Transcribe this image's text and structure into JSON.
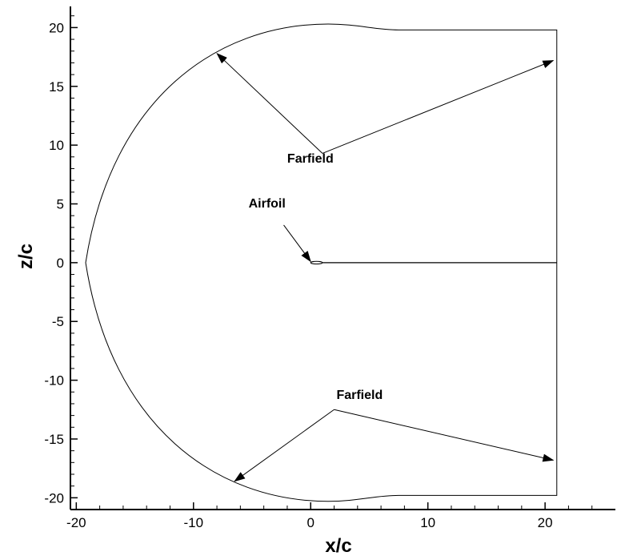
{
  "chart_data": {
    "type": "diagram",
    "xlabel": "x/c",
    "ylabel": "z/c",
    "xlim": [
      -20.5,
      26
    ],
    "ylim": [
      -21,
      21.8
    ],
    "x_ticks": [
      -20,
      -10,
      0,
      10,
      20
    ],
    "x_tick_labels": [
      "-20",
      "-10",
      "0",
      "10",
      "20"
    ],
    "y_ticks": [
      20,
      15,
      10,
      5,
      0,
      -5,
      -10,
      -15,
      -20
    ],
    "y_tick_labels": [
      "20",
      "15",
      "10",
      "5",
      "0",
      "-5",
      "-10",
      "-15",
      "-20"
    ],
    "domain": {
      "outflow_x": 21.0,
      "top_z": 19.8,
      "bottom_z": -19.8,
      "inlet_left_x": -19.2,
      "inlet_peak_x": 1.5,
      "inlet_peak_z": 20.3,
      "wake_line_from_x": 1.0
    },
    "annotations": [
      {
        "text": "Farfield",
        "text_at": [
          -2.0,
          8.5
        ],
        "arrows": [
          {
            "from": [
              1.0,
              9.3
            ],
            "to": [
              -8.0,
              17.8
            ]
          },
          {
            "from": [
              1.0,
              9.3
            ],
            "to": [
              20.7,
              17.2
            ]
          }
        ]
      },
      {
        "text": "Airfoil",
        "text_at": [
          -5.3,
          4.7
        ],
        "arrows": [
          {
            "from": [
              -2.3,
              3.2
            ],
            "to": [
              0.0,
              0.1
            ]
          }
        ]
      },
      {
        "text": "Farfield",
        "text_at": [
          2.2,
          -11.6
        ],
        "arrows": [
          {
            "from": [
              2.0,
              -12.5
            ],
            "to": [
              -6.5,
              -18.6
            ]
          },
          {
            "from": [
              2.0,
              -12.5
            ],
            "to": [
              20.7,
              -16.8
            ]
          }
        ]
      }
    ]
  }
}
